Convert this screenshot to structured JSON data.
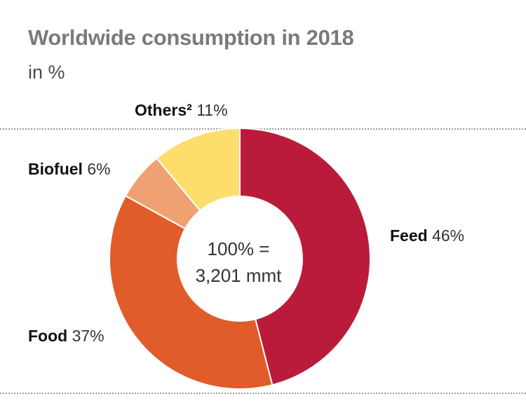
{
  "chart_data": {
    "type": "pie",
    "title": "Worldwide consumption in 2018",
    "subtitle": "in %",
    "donut": true,
    "center_label": [
      "100% =",
      "3,201 mmt"
    ],
    "slices": [
      {
        "name": "Feed",
        "value": 46,
        "label": "46%",
        "color": "#bb1b3b"
      },
      {
        "name": "Food",
        "value": 37,
        "label": "37%",
        "color": "#e05c2a"
      },
      {
        "name": "Biofuel",
        "value": 6,
        "label": "6%",
        "color": "#f0a171"
      },
      {
        "name": "Others²",
        "value": 11,
        "label": "11%",
        "color": "#fddd6c"
      }
    ]
  }
}
